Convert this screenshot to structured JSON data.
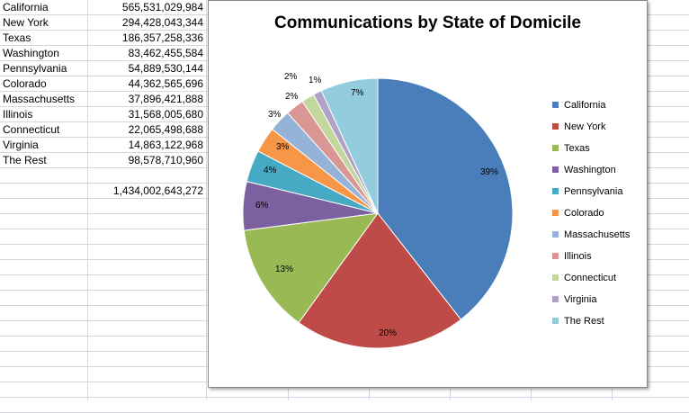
{
  "sheet": {
    "rows": [
      {
        "name": "California",
        "value": "565,531,029,984"
      },
      {
        "name": "New York",
        "value": "294,428,043,344"
      },
      {
        "name": "Texas",
        "value": "186,357,258,336"
      },
      {
        "name": "Washington",
        "value": "83,462,455,584"
      },
      {
        "name": "Pennsylvania",
        "value": "54,889,530,144"
      },
      {
        "name": "Colorado",
        "value": "44,362,565,696"
      },
      {
        "name": "Massachusetts",
        "value": "37,896,421,888"
      },
      {
        "name": "Illinois",
        "value": "31,568,005,680"
      },
      {
        "name": "Connecticut",
        "value": "22,065,498,688"
      },
      {
        "name": "Virginia",
        "value": "14,863,122,968"
      },
      {
        "name": "The Rest",
        "value": "98,578,710,960"
      }
    ],
    "total": "1,434,002,643,272"
  },
  "chart_data": {
    "type": "pie",
    "title": "Communications by State of Domicile",
    "categories": [
      "California",
      "New York",
      "Texas",
      "Washington",
      "Pennsylvania",
      "Colorado",
      "Massachusetts",
      "Illinois",
      "Connecticut",
      "Virginia",
      "The Rest"
    ],
    "values": [
      565531029984,
      294428043344,
      186357258336,
      83462455584,
      54889530144,
      44362565696,
      37896421888,
      31568005680,
      22065498688,
      14863122968,
      98578710960
    ],
    "percent_labels": [
      "39%",
      "20%",
      "13%",
      "6%",
      "4%",
      "3%",
      "3%",
      "2%",
      "2%",
      "1%",
      "7%"
    ],
    "colors": [
      "#4a7ebb",
      "#be4b48",
      "#98b954",
      "#7d60a0",
      "#46aac5",
      "#f79646",
      "#95b3d7",
      "#d99694",
      "#c3d69b",
      "#b2a1c7",
      "#93cddd"
    ],
    "legend_position": "right"
  }
}
